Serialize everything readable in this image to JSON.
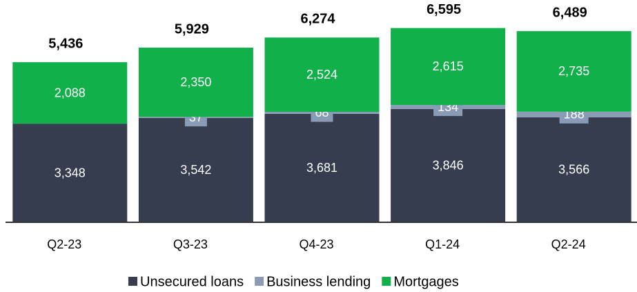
{
  "chart_data": {
    "type": "stacked_bar",
    "categories": [
      "Q2-23",
      "Q3-23",
      "Q4-23",
      "Q1-24",
      "Q2-24"
    ],
    "series": [
      {
        "name": "Unsecured loans",
        "color": "#363d4f",
        "values": [
          3348,
          3542,
          3681,
          3846,
          3566
        ],
        "value_labels": [
          "3,348",
          "3,542",
          "3,681",
          "3,846",
          "3,566"
        ]
      },
      {
        "name": "Business lending",
        "color": "#8a9bb5",
        "values": [
          null,
          37,
          68,
          134,
          188
        ],
        "value_labels": [
          null,
          "37",
          "68",
          "134",
          "188"
        ]
      },
      {
        "name": "Mortgages",
        "color": "#12b04a",
        "values": [
          2088,
          2350,
          2524,
          2615,
          2735
        ],
        "value_labels": [
          "2,088",
          "2,350",
          "2,524",
          "2,615",
          "2,735"
        ]
      }
    ],
    "totals": [
      5436,
      5929,
      6274,
      6595,
      6489
    ],
    "total_labels": [
      "5,436",
      "5,929",
      "6,274",
      "6,595",
      "6,489"
    ],
    "ylim": [
      0,
      7500
    ],
    "legend": "bottom"
  }
}
